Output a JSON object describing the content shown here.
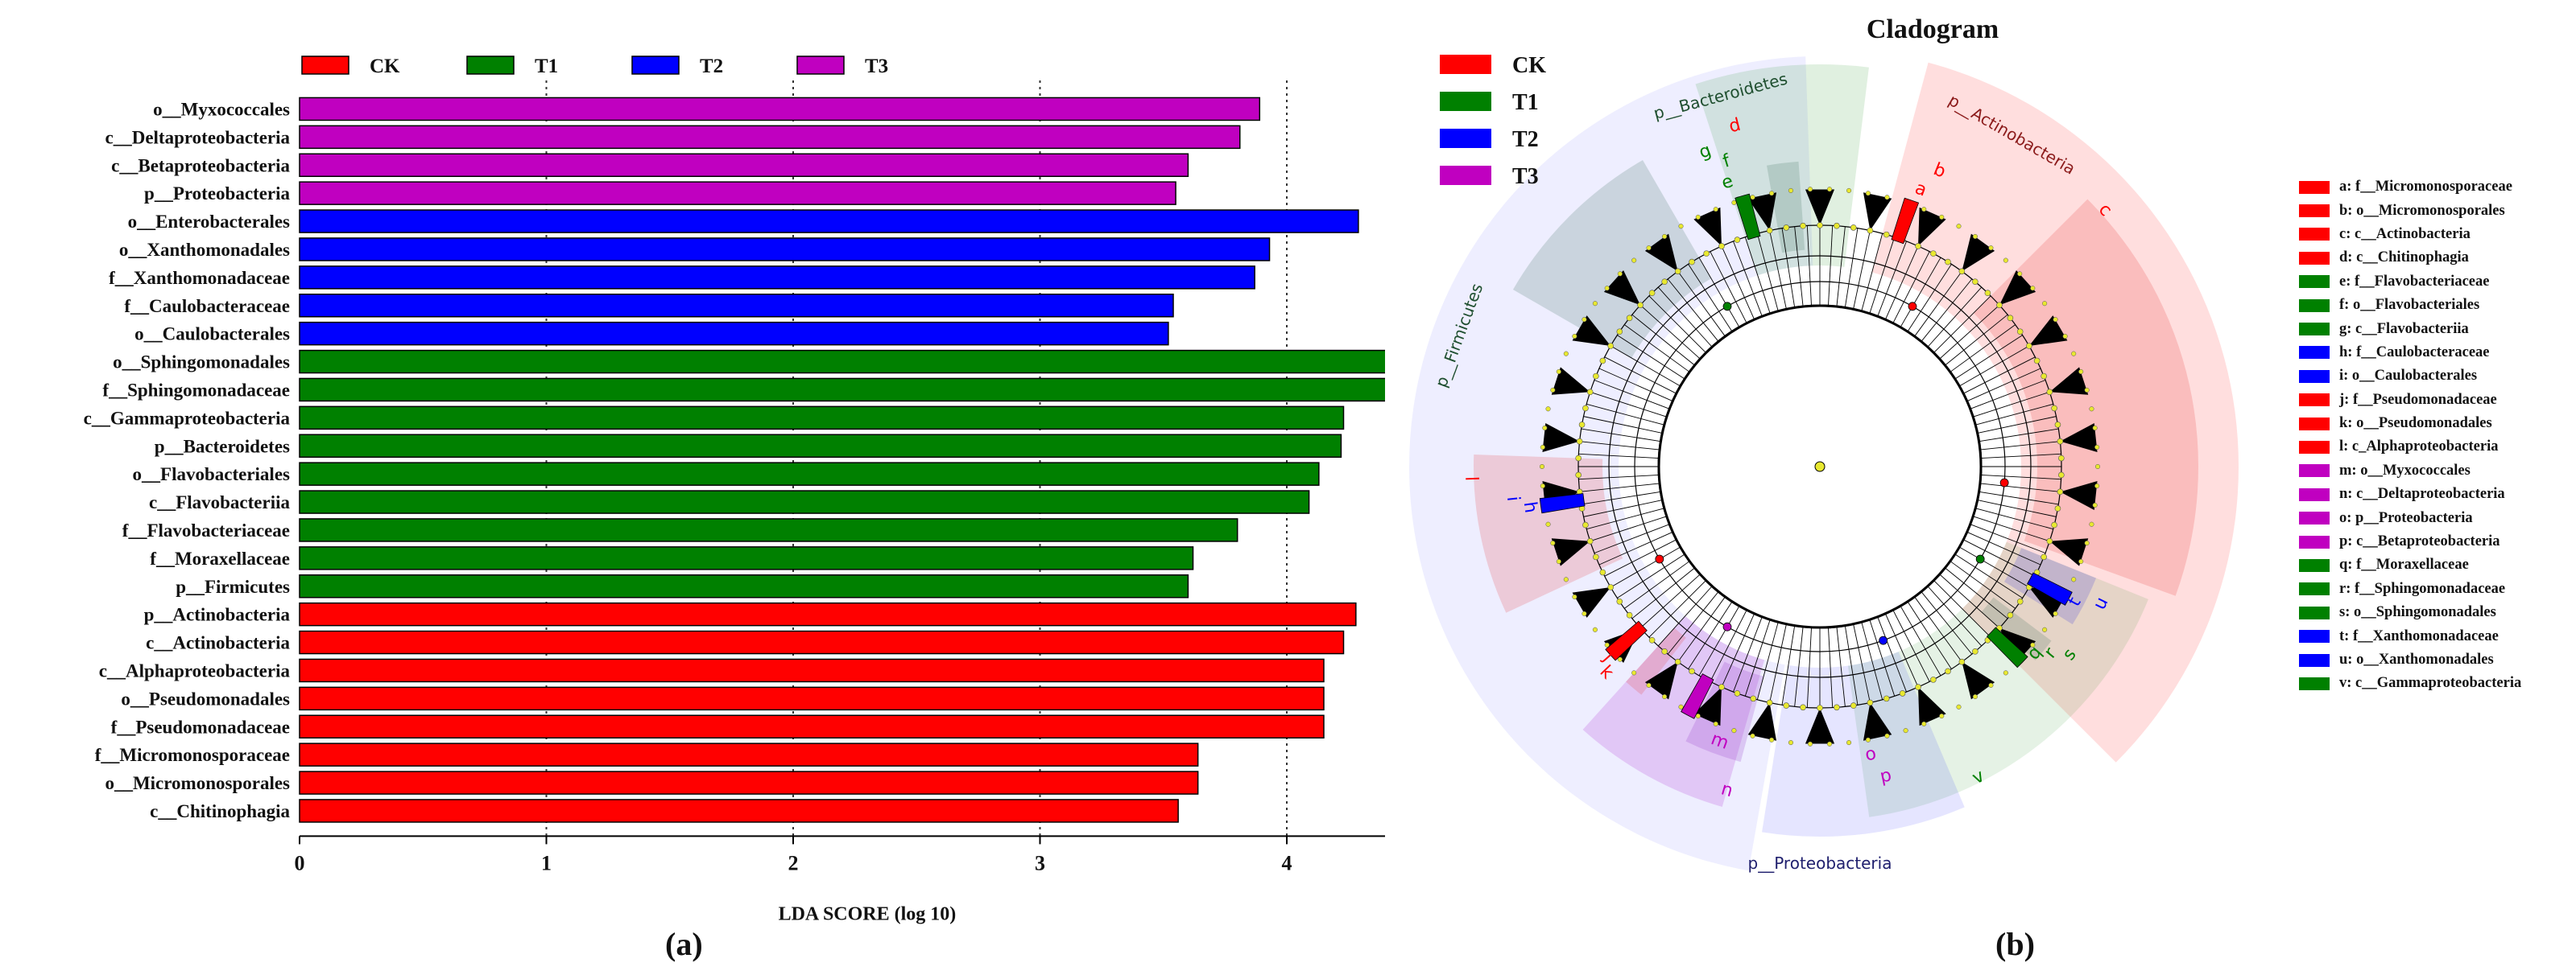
{
  "colors": {
    "CK": "#ff0000",
    "T1": "#008000",
    "T2": "#0000ff",
    "T3": "#c000c0"
  },
  "chart_data": [
    {
      "type": "bar",
      "orientation": "horizontal",
      "xlabel": "LDA SCORE (log 10)",
      "xticks": [
        "0",
        "1",
        "2",
        "3",
        "4"
      ],
      "xlim": [
        0,
        4.6
      ],
      "legend": [
        "CK",
        "T1",
        "T2",
        "T3"
      ],
      "legend_position": "top",
      "gridlines": "vertical dotted",
      "caption": "(a)",
      "bars": [
        {
          "label": "o__Myxococcales",
          "group": "T3",
          "value": 3.89
        },
        {
          "label": "c__Deltaproteobacteria",
          "group": "T3",
          "value": 3.81
        },
        {
          "label": "c__Betaproteobacteria",
          "group": "T3",
          "value": 3.6
        },
        {
          "label": "p__Proteobacteria",
          "group": "T3",
          "value": 3.55
        },
        {
          "label": "o__Enterobacterales",
          "group": "T2",
          "value": 4.29
        },
        {
          "label": "o__Xanthomonadales",
          "group": "T2",
          "value": 3.93
        },
        {
          "label": "f__Xanthomonadaceae",
          "group": "T2",
          "value": 3.87
        },
        {
          "label": "f__Caulobacteraceae",
          "group": "T2",
          "value": 3.54
        },
        {
          "label": "o__Caulobacterales",
          "group": "T2",
          "value": 3.52
        },
        {
          "label": "o__Sphingomonadales",
          "group": "T1",
          "value": 4.51
        },
        {
          "label": "f__Sphingomonadaceae",
          "group": "T1",
          "value": 4.5
        },
        {
          "label": "c__Gammaproteobacteria",
          "group": "T1",
          "value": 4.23
        },
        {
          "label": "p__Bacteroidetes",
          "group": "T1",
          "value": 4.22
        },
        {
          "label": "o__Flavobacteriales",
          "group": "T1",
          "value": 4.13
        },
        {
          "label": "c__Flavobacteriia",
          "group": "T1",
          "value": 4.09
        },
        {
          "label": "f__Flavobacteriaceae",
          "group": "T1",
          "value": 3.8
        },
        {
          "label": "f__Moraxellaceae",
          "group": "T1",
          "value": 3.62
        },
        {
          "label": "p__Firmicutes",
          "group": "T1",
          "value": 3.6
        },
        {
          "label": "p__Actinobacteria",
          "group": "CK",
          "value": 4.28
        },
        {
          "label": "c__Actinobacteria",
          "group": "CK",
          "value": 4.23
        },
        {
          "label": "c__Alphaproteobacteria",
          "group": "CK",
          "value": 4.15
        },
        {
          "label": "o__Pseudomonadales",
          "group": "CK",
          "value": 4.15
        },
        {
          "label": "f__Pseudomonadaceae",
          "group": "CK",
          "value": 4.15
        },
        {
          "label": "f__Micromonosporaceae",
          "group": "CK",
          "value": 3.64
        },
        {
          "label": "o__Micromonosporales",
          "group": "CK",
          "value": 3.64
        },
        {
          "label": "c__Chitinophagia",
          "group": "CK",
          "value": 3.56
        }
      ]
    },
    {
      "type": "cladogram",
      "title": "Cladogram",
      "caption": "(b)",
      "legend": [
        "CK",
        "T1",
        "T2",
        "T3"
      ],
      "phyla": [
        {
          "name": "p__Bacteroidetes",
          "group": "T1"
        },
        {
          "name": "p__Actinobacteria",
          "group": "CK"
        },
        {
          "name": "p__Firmicutes",
          "group": "T1"
        },
        {
          "name": "p__Proteobacteria",
          "group": "T3"
        }
      ],
      "key": [
        {
          "letter": "a",
          "label": "a: f__Micromonosporaceae",
          "group": "CK"
        },
        {
          "letter": "b",
          "label": "b: o__Micromonosporales",
          "group": "CK"
        },
        {
          "letter": "c",
          "label": "c: c__Actinobacteria",
          "group": "CK"
        },
        {
          "letter": "d",
          "label": "d: c__Chitinophagia",
          "group": "CK"
        },
        {
          "letter": "e",
          "label": "e: f__Flavobacteriaceae",
          "group": "T1"
        },
        {
          "letter": "f",
          "label": "f: o__Flavobacteriales",
          "group": "T1"
        },
        {
          "letter": "g",
          "label": "g: c__Flavobacteriia",
          "group": "T1"
        },
        {
          "letter": "h",
          "label": "h: f__Caulobacteraceae",
          "group": "T2"
        },
        {
          "letter": "i",
          "label": "i: o__Caulobacterales",
          "group": "T2"
        },
        {
          "letter": "j",
          "label": "j: f__Pseudomonadaceae",
          "group": "CK"
        },
        {
          "letter": "k",
          "label": "k: o__Pseudomonadales",
          "group": "CK"
        },
        {
          "letter": "l",
          "label": "l: c_Alphaproteobacteria",
          "group": "CK"
        },
        {
          "letter": "m",
          "label": "m: o__Myxococcales",
          "group": "T3"
        },
        {
          "letter": "n",
          "label": "n: c__Deltaproteobacteria",
          "group": "T3"
        },
        {
          "letter": "o",
          "label": "o: p__Proteobacteria",
          "group": "T3"
        },
        {
          "letter": "p",
          "label": "p: c__Betaproteobacteria",
          "group": "T3"
        },
        {
          "letter": "q",
          "label": "q: f__Moraxellaceae",
          "group": "T1"
        },
        {
          "letter": "r",
          "label": "r: f__Sphingomonadaceae",
          "group": "T1"
        },
        {
          "letter": "s",
          "label": "s: o__Sphingomonadales",
          "group": "T1"
        },
        {
          "letter": "t",
          "label": "t: f__Xanthomonadaceae",
          "group": "T2"
        },
        {
          "letter": "u",
          "label": "u: o__Xanthomonadales",
          "group": "T2"
        },
        {
          "letter": "v",
          "label": "v: c__Gammaproteobacteria",
          "group": "T1"
        }
      ]
    }
  ]
}
